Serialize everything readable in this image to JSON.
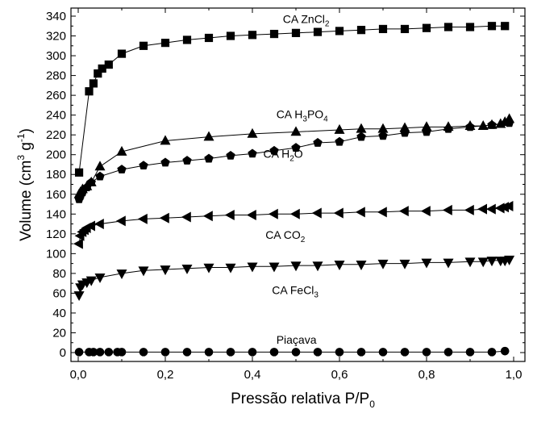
{
  "chart_data": {
    "type": "scatter",
    "xlabel": "Pressão relativa P/P",
    "xlabel_sub": "0",
    "ylabel": "Volume (cm",
    "ylabel_sup1": "3",
    "ylabel_mid": " g",
    "ylabel_sup2": "-1",
    "ylabel_end": ")",
    "xlim": [
      0,
      1.0
    ],
    "ylim": [
      0,
      340
    ],
    "x_ticks": [
      "0,0",
      "0,2",
      "0,4",
      "0,6",
      "0,8",
      "1,0"
    ],
    "x_tick_values": [
      0,
      0.2,
      0.4,
      0.6,
      0.8,
      1.0
    ],
    "y_ticks": [
      "0",
      "20",
      "40",
      "60",
      "80",
      "100",
      "120",
      "140",
      "160",
      "180",
      "200",
      "220",
      "240",
      "260",
      "280",
      "300",
      "320",
      "340"
    ],
    "y_tick_values": [
      0,
      20,
      40,
      60,
      80,
      100,
      120,
      140,
      160,
      180,
      200,
      220,
      240,
      260,
      280,
      300,
      320,
      340
    ],
    "grid": false,
    "legend": "none",
    "series": [
      {
        "name": "CA ZnCl₂",
        "marker": "square",
        "x": [
          0.002,
          0.025,
          0.035,
          0.045,
          0.055,
          0.07,
          0.1,
          0.15,
          0.2,
          0.25,
          0.3,
          0.35,
          0.4,
          0.45,
          0.5,
          0.55,
          0.6,
          0.65,
          0.7,
          0.75,
          0.8,
          0.85,
          0.9,
          0.95,
          0.98
        ],
        "y": [
          182,
          264,
          272,
          282,
          287,
          291,
          302,
          310,
          313,
          316,
          318,
          320,
          321,
          322,
          323,
          324,
          325,
          326,
          327,
          327,
          328,
          329,
          329,
          330,
          330
        ]
      },
      {
        "name": "CA H₃PO₄",
        "marker": "triangle-up",
        "x": [
          0.002,
          0.005,
          0.01,
          0.02,
          0.03,
          0.05,
          0.1,
          0.2,
          0.3,
          0.4,
          0.5,
          0.6,
          0.65,
          0.7,
          0.75,
          0.8,
          0.85,
          0.9,
          0.93,
          0.95,
          0.97,
          0.98,
          0.99
        ],
        "y": [
          160,
          162,
          165,
          168,
          172,
          188,
          203,
          214,
          218,
          221,
          223,
          225,
          226,
          226,
          227,
          228,
          228,
          229,
          229,
          230,
          231,
          233,
          236
        ]
      },
      {
        "name": "CA H₂O",
        "marker": "pentagon",
        "x": [
          0.002,
          0.005,
          0.01,
          0.02,
          0.03,
          0.05,
          0.1,
          0.15,
          0.2,
          0.25,
          0.3,
          0.35,
          0.4,
          0.45,
          0.5,
          0.55,
          0.6,
          0.65,
          0.7,
          0.75,
          0.8,
          0.85,
          0.9,
          0.95,
          0.99
        ],
        "y": [
          155,
          158,
          162,
          167,
          172,
          178,
          185,
          189,
          192,
          194,
          196,
          199,
          201,
          204,
          207,
          212,
          213,
          218,
          219,
          222,
          223,
          226,
          228,
          230,
          232
        ]
      },
      {
        "name": "CA CO₂",
        "marker": "triangle-left",
        "x": [
          0.002,
          0.005,
          0.01,
          0.015,
          0.02,
          0.03,
          0.05,
          0.1,
          0.15,
          0.2,
          0.25,
          0.3,
          0.35,
          0.4,
          0.45,
          0.5,
          0.55,
          0.6,
          0.65,
          0.7,
          0.75,
          0.8,
          0.85,
          0.9,
          0.93,
          0.95,
          0.97,
          0.98,
          0.99
        ],
        "y": [
          110,
          118,
          122,
          124,
          126,
          128,
          130,
          133,
          135,
          136,
          137,
          138,
          139,
          139,
          140,
          140,
          141,
          141,
          142,
          142,
          143,
          143,
          144,
          144,
          145,
          145,
          146,
          147,
          148
        ]
      },
      {
        "name": "CA FeCl₃",
        "marker": "triangle-down",
        "x": [
          0.002,
          0.005,
          0.01,
          0.02,
          0.03,
          0.05,
          0.1,
          0.15,
          0.2,
          0.25,
          0.3,
          0.35,
          0.4,
          0.45,
          0.5,
          0.55,
          0.6,
          0.65,
          0.7,
          0.75,
          0.8,
          0.85,
          0.9,
          0.93,
          0.95,
          0.97,
          0.98,
          0.99
        ],
        "y": [
          58,
          66,
          69,
          71,
          73,
          76,
          80,
          83,
          84,
          85,
          86,
          86,
          87,
          87,
          88,
          88,
          89,
          89,
          90,
          90,
          91,
          91,
          92,
          92,
          93,
          93,
          93,
          94
        ]
      },
      {
        "name": "Piaçava",
        "marker": "circle",
        "x": [
          0.002,
          0.025,
          0.035,
          0.05,
          0.07,
          0.09,
          0.1,
          0.15,
          0.2,
          0.25,
          0.3,
          0.35,
          0.4,
          0.45,
          0.5,
          0.55,
          0.6,
          0.65,
          0.7,
          0.75,
          0.8,
          0.85,
          0.9,
          0.95,
          0.98
        ],
        "y": [
          0.5,
          0.5,
          0.5,
          0.5,
          0.5,
          0.5,
          0.5,
          0.5,
          0.5,
          0.5,
          0.5,
          0.5,
          0.5,
          0.5,
          0.5,
          0.5,
          0.5,
          0.5,
          0.5,
          0.5,
          0.5,
          0.5,
          0.5,
          0.5,
          1.5
        ]
      }
    ],
    "annotations": [
      {
        "base": "CA ZnCl",
        "sub": "2",
        "after": "",
        "x": 0.47,
        "y": 333
      },
      {
        "base": "CA H",
        "sub": "3",
        "after": "PO",
        "sub2": "4",
        "x": 0.455,
        "y": 237
      },
      {
        "base": "CA H",
        "sub": "2",
        "after": "O",
        "x": 0.425,
        "y": 197
      },
      {
        "base": "CA CO",
        "sub": "2",
        "after": "",
        "x": 0.43,
        "y": 115
      },
      {
        "base": "CA FeCl",
        "sub": "3",
        "after": "",
        "x": 0.445,
        "y": 59
      },
      {
        "base": "Piaçava",
        "sub": "",
        "after": "",
        "x": 0.455,
        "y": 9
      }
    ]
  }
}
